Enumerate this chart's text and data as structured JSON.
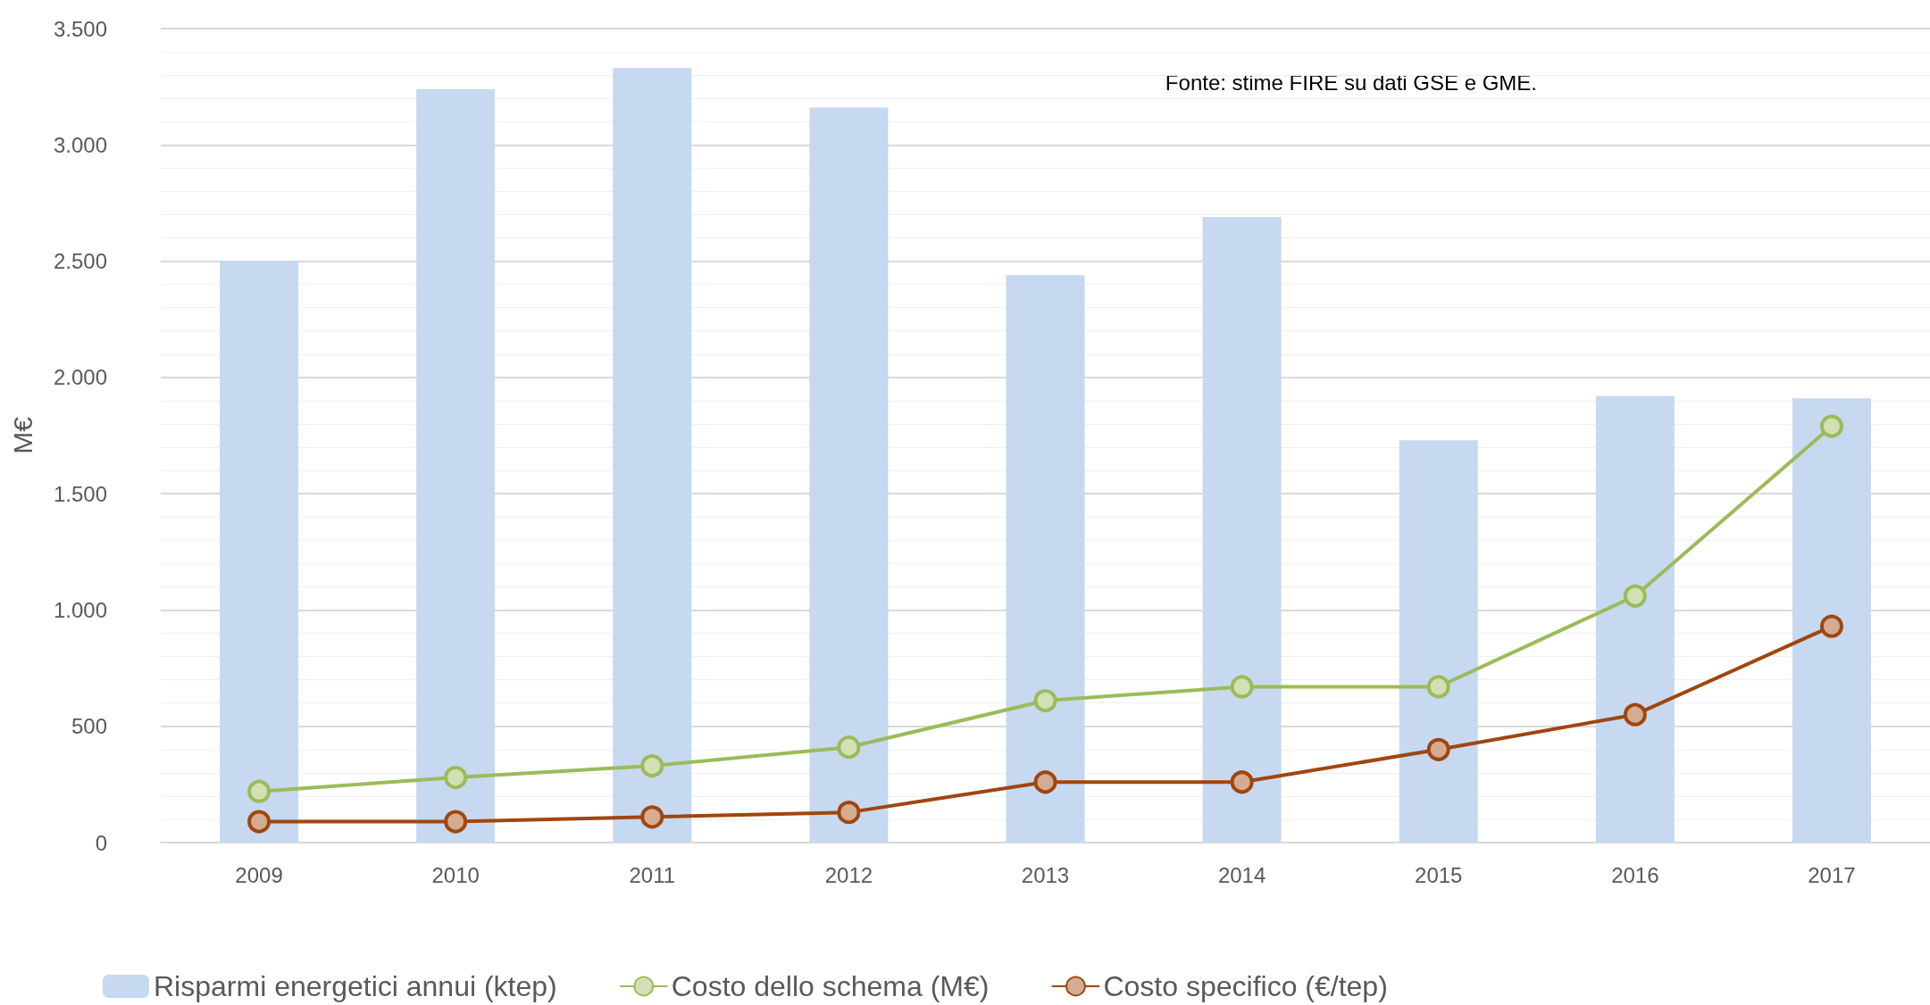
{
  "chart_data": {
    "type": "bar",
    "ylabel": "M€",
    "categories": [
      "2009",
      "2010",
      "2011",
      "2012",
      "2013",
      "2014",
      "2015",
      "2016",
      "2017"
    ],
    "series": [
      {
        "name": "Risparmi energetici annui (ktep)",
        "color": "#c6d9f0",
        "values": [
          2500,
          3240,
          3330,
          3160,
          2440,
          2690,
          1730,
          1920,
          1910
        ]
      },
      {
        "name": "Costo dello schema (M€)",
        "type": "line",
        "color": "#9bbb59",
        "values": [
          220,
          280,
          330,
          410,
          610,
          670,
          670,
          1060,
          1790
        ]
      },
      {
        "name": "Costo specifico (€/tep)",
        "type": "line",
        "color": "#a0460e",
        "values": [
          90,
          90,
          110,
          130,
          260,
          260,
          400,
          550,
          930
        ]
      }
    ],
    "ylim": [
      0,
      3500
    ],
    "yticks": [
      0,
      500,
      {
        "value": 1000,
        "label": "1.000"
      },
      {
        "value": 1500,
        "label": "1.500"
      },
      {
        "value": 2000,
        "label": "2.000"
      },
      {
        "value": 2500,
        "label": "2.500"
      },
      {
        "value": 3000,
        "label": "3.000"
      },
      {
        "value": 3500,
        "label": "3.500"
      }
    ],
    "grid": "y",
    "legend": "bottom left",
    "marker": "circle",
    "line_style": "solid",
    "annotations": [
      "Fonte: stime FIRE su dati GSE e GME."
    ]
  }
}
